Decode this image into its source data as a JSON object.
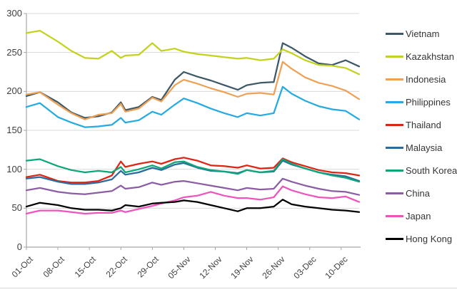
{
  "chart_data": {
    "type": "line",
    "title": "",
    "xlabel": "",
    "ylabel": "",
    "ylim": [
      0,
      300
    ],
    "y_ticks": [
      0,
      50,
      100,
      150,
      200,
      250,
      300
    ],
    "grid": "horizontal",
    "legend_position": "right",
    "x_labels": [
      "01-Oct",
      "08-Oct",
      "15-Oct",
      "22-Oct",
      "29-Oct",
      "05-Nov",
      "12-Nov",
      "19-Nov",
      "26-Nov",
      "03-Dec",
      "10-Dec"
    ],
    "x_tick_interval_days": 7,
    "x_total_days": 74,
    "x_sample_days": [
      0,
      3,
      7,
      10,
      13,
      16,
      19,
      21,
      22,
      25,
      28,
      30,
      33,
      35,
      38,
      41,
      44,
      47,
      49,
      52,
      55,
      57,
      59,
      62,
      65,
      68,
      71,
      74
    ],
    "x_sample_dates": [
      "01-Oct",
      "04-Oct",
      "08-Oct",
      "11-Oct",
      "14-Oct",
      "17-Oct",
      "20-Oct",
      "22-Oct",
      "23-Oct",
      "26-Oct",
      "29-Oct",
      "31-Oct",
      "03-Nov",
      "05-Nov",
      "08-Nov",
      "11-Nov",
      "14-Nov",
      "17-Nov",
      "19-Nov",
      "22-Nov",
      "25-Nov",
      "27-Nov",
      "29-Nov",
      "02-Dec",
      "05-Dec",
      "08-Dec",
      "11-Dec",
      "14-Dec"
    ],
    "series": [
      {
        "name": "Vietnam",
        "color": "#3d5866",
        "values": [
          194,
          199,
          186,
          173,
          166,
          168,
          173,
          186,
          176,
          180,
          193,
          189,
          215,
          225,
          219,
          214,
          208,
          202,
          208,
          211,
          212,
          262,
          256,
          245,
          236,
          234,
          240,
          232
        ]
      },
      {
        "name": "Kazakhstan",
        "color": "#c3d21f",
        "values": [
          275,
          278,
          264,
          252,
          243,
          242,
          252,
          243,
          246,
          247,
          262,
          252,
          255,
          251,
          248,
          246,
          244,
          242,
          243,
          240,
          242,
          254,
          249,
          240,
          234,
          233,
          230,
          222
        ]
      },
      {
        "name": "Indonesia",
        "color": "#eda156",
        "values": [
          196,
          199,
          183,
          172,
          164,
          170,
          172,
          184,
          174,
          178,
          192,
          187,
          208,
          215,
          210,
          204,
          199,
          193,
          197,
          198,
          196,
          238,
          229,
          218,
          211,
          207,
          201,
          190
        ]
      },
      {
        "name": "Philippines",
        "color": "#25aae2",
        "values": [
          180,
          185,
          167,
          160,
          154,
          155,
          157,
          166,
          160,
          163,
          174,
          170,
          183,
          191,
          185,
          178,
          172,
          167,
          172,
          169,
          172,
          206,
          197,
          188,
          181,
          177,
          175,
          164
        ]
      },
      {
        "name": "Thailand",
        "color": "#dd2515",
        "values": [
          90,
          93,
          85,
          83,
          83,
          85,
          92,
          110,
          103,
          107,
          110,
          107,
          113,
          115,
          111,
          105,
          104,
          102,
          105,
          101,
          102,
          114,
          109,
          104,
          99,
          96,
          95,
          92
        ]
      },
      {
        "name": "Malaysia",
        "color": "#2c6c9c",
        "values": [
          88,
          90,
          84,
          81,
          81,
          83,
          87,
          98,
          93,
          96,
          102,
          99,
          106,
          108,
          102,
          98,
          97,
          95,
          99,
          96,
          97,
          111,
          106,
          101,
          96,
          93,
          91,
          85
        ]
      },
      {
        "name": "South Korea",
        "color": "#0ca678",
        "values": [
          111,
          113,
          104,
          99,
          96,
          98,
          96,
          103,
          96,
          100,
          105,
          101,
          109,
          110,
          103,
          99,
          97,
          94,
          99,
          96,
          98,
          113,
          107,
          101,
          96,
          92,
          89,
          84
        ]
      },
      {
        "name": "China",
        "color": "#8a5da4",
        "values": [
          73,
          76,
          71,
          69,
          68,
          70,
          72,
          79,
          75,
          77,
          83,
          80,
          84,
          85,
          82,
          79,
          76,
          73,
          76,
          74,
          75,
          88,
          84,
          79,
          75,
          72,
          71,
          67
        ]
      },
      {
        "name": "Japan",
        "color": "#ef53bc",
        "values": [
          43,
          47,
          47,
          45,
          43,
          44,
          44,
          47,
          45,
          49,
          53,
          56,
          60,
          64,
          66,
          71,
          66,
          63,
          63,
          61,
          64,
          78,
          73,
          68,
          64,
          63,
          65,
          58
        ]
      },
      {
        "name": "Hong Kong",
        "color": "#000000",
        "values": [
          52,
          57,
          54,
          50,
          48,
          48,
          47,
          50,
          54,
          52,
          56,
          57,
          58,
          60,
          58,
          54,
          50,
          46,
          50,
          50,
          52,
          61,
          55,
          52,
          50,
          48,
          47,
          45
        ]
      }
    ],
    "colors": {
      "gridline": "#d9d9d9",
      "axis": "#a6a6a6",
      "tick_text": "#3f3f3f"
    }
  }
}
